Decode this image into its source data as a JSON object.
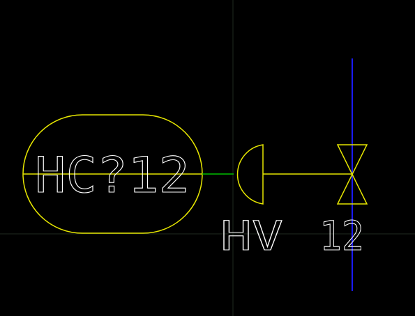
{
  "drawing": {
    "background_color": "#000000",
    "crosshair_color": "#1f2a1f",
    "controller": {
      "tag": "HC?12",
      "color": "#e6e600",
      "text_color": "#ffffff"
    },
    "signal_line": {
      "color": "#00c000"
    },
    "actuator": {
      "color": "#e6e600"
    },
    "valve": {
      "tag_prefix": "HV",
      "tag_number": "12",
      "color": "#e6e600",
      "text_color": "#ffffff"
    },
    "process_line": {
      "color": "#1a1aff"
    }
  }
}
